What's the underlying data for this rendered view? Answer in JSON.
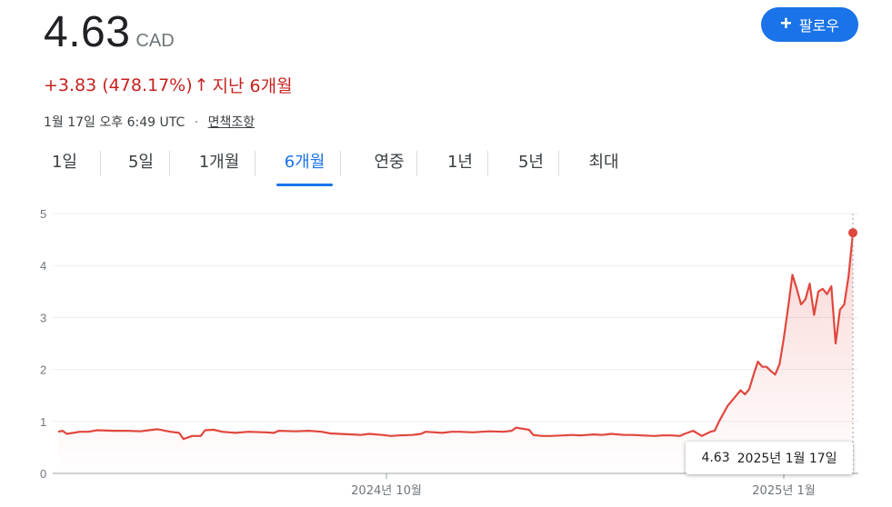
{
  "header": {
    "price": "4.63",
    "currency": "CAD",
    "change_text": "+3.83 (478.17%)",
    "change_arrow": "↑",
    "change_period": "지난 6개월",
    "timestamp": "1월 17일 오후 6:49 UTC",
    "separator": "·",
    "disclaimer": "면책조항",
    "follow_label": "팔로우",
    "follow_icon": "plus-icon"
  },
  "colors": {
    "line": "#e0473e",
    "accent": "#1a73e8",
    "negative_text": "#c5221f"
  },
  "tabs": [
    {
      "label": "1일",
      "active": false
    },
    {
      "label": "5일",
      "active": false
    },
    {
      "label": "1개월",
      "active": false
    },
    {
      "label": "6개월",
      "active": true
    },
    {
      "label": "연중",
      "active": false
    },
    {
      "label": "1년",
      "active": false
    },
    {
      "label": "5년",
      "active": false
    },
    {
      "label": "최대",
      "active": false
    }
  ],
  "tooltip": {
    "value": "4.63",
    "date": "2025년 1월 17일"
  },
  "chart_data": {
    "type": "area",
    "x_range": [
      "2024-07-17",
      "2025-01-17"
    ],
    "ylim": [
      0,
      5
    ],
    "yticks": [
      0,
      1,
      2,
      3,
      4,
      5
    ],
    "xticks": [
      {
        "date": "2024-10-01",
        "label": "2024년 10월"
      },
      {
        "date": "2025-01-01",
        "label": "2025년 1월"
      }
    ],
    "grid": true,
    "last_point_marker": true,
    "series": [
      {
        "points": [
          [
            "2024-07-17",
            0.8
          ],
          [
            "2024-07-18",
            0.82
          ],
          [
            "2024-07-19",
            0.76
          ],
          [
            "2024-07-22",
            0.8
          ],
          [
            "2024-07-24",
            0.8
          ],
          [
            "2024-07-26",
            0.83
          ],
          [
            "2024-07-30",
            0.82
          ],
          [
            "2024-08-02",
            0.82
          ],
          [
            "2024-08-05",
            0.81
          ],
          [
            "2024-08-07",
            0.83
          ],
          [
            "2024-08-09",
            0.85
          ],
          [
            "2024-08-12",
            0.8
          ],
          [
            "2024-08-14",
            0.78
          ],
          [
            "2024-08-15",
            0.66
          ],
          [
            "2024-08-17",
            0.72
          ],
          [
            "2024-08-19",
            0.72
          ],
          [
            "2024-08-20",
            0.83
          ],
          [
            "2024-08-22",
            0.84
          ],
          [
            "2024-08-24",
            0.8
          ],
          [
            "2024-08-27",
            0.78
          ],
          [
            "2024-08-30",
            0.8
          ],
          [
            "2024-09-03",
            0.79
          ],
          [
            "2024-09-05",
            0.78
          ],
          [
            "2024-09-06",
            0.82
          ],
          [
            "2024-09-10",
            0.81
          ],
          [
            "2024-09-13",
            0.82
          ],
          [
            "2024-09-16",
            0.8
          ],
          [
            "2024-09-18",
            0.77
          ],
          [
            "2024-09-20",
            0.76
          ],
          [
            "2024-09-23",
            0.75
          ],
          [
            "2024-09-25",
            0.74
          ],
          [
            "2024-09-27",
            0.76
          ],
          [
            "2024-09-30",
            0.74
          ],
          [
            "2024-10-02",
            0.72
          ],
          [
            "2024-10-04",
            0.73
          ],
          [
            "2024-10-07",
            0.74
          ],
          [
            "2024-10-09",
            0.76
          ],
          [
            "2024-10-10",
            0.8
          ],
          [
            "2024-10-14",
            0.78
          ],
          [
            "2024-10-16",
            0.8
          ],
          [
            "2024-10-18",
            0.8
          ],
          [
            "2024-10-21",
            0.79
          ],
          [
            "2024-10-23",
            0.8
          ],
          [
            "2024-10-25",
            0.81
          ],
          [
            "2024-10-28",
            0.8
          ],
          [
            "2024-10-30",
            0.82
          ],
          [
            "2024-10-31",
            0.88
          ],
          [
            "2024-11-03",
            0.84
          ],
          [
            "2024-11-04",
            0.74
          ],
          [
            "2024-11-06",
            0.72
          ],
          [
            "2024-11-08",
            0.72
          ],
          [
            "2024-11-11",
            0.73
          ],
          [
            "2024-11-13",
            0.74
          ],
          [
            "2024-11-15",
            0.73
          ],
          [
            "2024-11-18",
            0.75
          ],
          [
            "2024-11-20",
            0.74
          ],
          [
            "2024-11-22",
            0.76
          ],
          [
            "2024-11-25",
            0.74
          ],
          [
            "2024-11-27",
            0.74
          ],
          [
            "2024-11-29",
            0.73
          ],
          [
            "2024-12-02",
            0.72
          ],
          [
            "2024-12-04",
            0.73
          ],
          [
            "2024-12-06",
            0.73
          ],
          [
            "2024-12-08",
            0.72
          ],
          [
            "2024-12-09",
            0.76
          ],
          [
            "2024-12-11",
            0.82
          ],
          [
            "2024-12-13",
            0.72
          ],
          [
            "2024-12-15",
            0.8
          ],
          [
            "2024-12-16",
            0.82
          ],
          [
            "2024-12-17",
            1.0
          ],
          [
            "2024-12-19",
            1.3
          ],
          [
            "2024-12-21",
            1.5
          ],
          [
            "2024-12-22",
            1.6
          ],
          [
            "2024-12-23",
            1.52
          ],
          [
            "2024-12-24",
            1.62
          ],
          [
            "2024-12-25",
            1.9
          ],
          [
            "2024-12-26",
            2.15
          ],
          [
            "2024-12-27",
            2.05
          ],
          [
            "2024-12-28",
            2.05
          ],
          [
            "2024-12-29",
            1.97
          ],
          [
            "2024-12-30",
            1.9
          ],
          [
            "2024-12-31",
            2.1
          ],
          [
            "2025-01-01",
            2.6
          ],
          [
            "2025-01-02",
            3.2
          ],
          [
            "2025-01-03",
            3.82
          ],
          [
            "2025-01-04",
            3.55
          ],
          [
            "2025-01-05",
            3.25
          ],
          [
            "2025-01-06",
            3.35
          ],
          [
            "2025-01-07",
            3.65
          ],
          [
            "2025-01-08",
            3.05
          ],
          [
            "2025-01-09",
            3.5
          ],
          [
            "2025-01-10",
            3.55
          ],
          [
            "2025-01-11",
            3.45
          ],
          [
            "2025-01-12",
            3.6
          ],
          [
            "2025-01-13",
            2.5
          ],
          [
            "2025-01-14",
            3.15
          ],
          [
            "2025-01-15",
            3.25
          ],
          [
            "2025-01-16",
            3.8
          ],
          [
            "2025-01-17",
            4.63
          ]
        ]
      }
    ]
  }
}
